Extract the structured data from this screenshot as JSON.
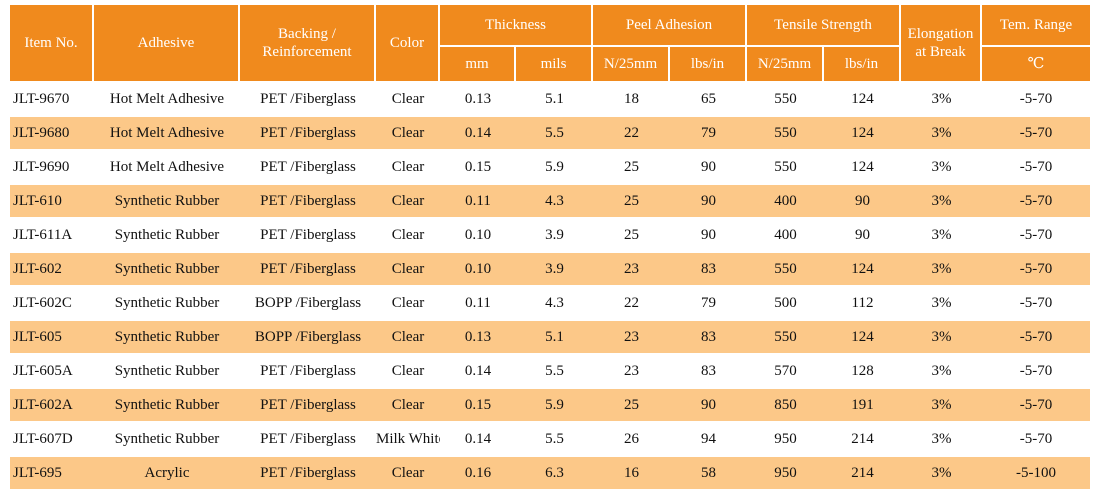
{
  "table": {
    "headers": {
      "item_no": "Item No.",
      "adhesive": "Adhesive",
      "backing_line1": "Backing /",
      "backing_line2": "Reinforcement",
      "color": "Color",
      "thickness": "Thickness",
      "thickness_mm": "mm",
      "thickness_mils": "mils",
      "peel_adhesion": "Peel Adhesion",
      "peel_n25mm": "N/25mm",
      "peel_lbsin": "lbs/in",
      "tensile_strength": "Tensile Strength",
      "tensile_n25mm": "N/25mm",
      "tensile_lbsin": "lbs/in",
      "elongation_line1": "Elongation",
      "elongation_line2": "at Break",
      "tem_range": "Tem. Range",
      "tem_unit": "℃"
    },
    "colors": {
      "header_bg": "#f08a1d",
      "header_text": "#ffffff",
      "stripe_bg": "#fcc888",
      "row_bg": "#ffffff"
    },
    "rows": [
      [
        "JLT-9670",
        "Hot Melt Adhesive",
        "PET /Fiberglass",
        "Clear",
        "0.13",
        "5.1",
        "18",
        "65",
        "550",
        "124",
        "3%",
        "-5-70"
      ],
      [
        "JLT-9680",
        "Hot Melt Adhesive",
        "PET /Fiberglass",
        "Clear",
        "0.14",
        "5.5",
        "22",
        "79",
        "550",
        "124",
        "3%",
        "-5-70"
      ],
      [
        "JLT-9690",
        "Hot Melt Adhesive",
        "PET /Fiberglass",
        "Clear",
        "0.15",
        "5.9",
        "25",
        "90",
        "550",
        "124",
        "3%",
        "-5-70"
      ],
      [
        "JLT-610",
        "Synthetic Rubber",
        "PET /Fiberglass",
        "Clear",
        "0.11",
        "4.3",
        "25",
        "90",
        "400",
        "90",
        "3%",
        "-5-70"
      ],
      [
        "JLT-611A",
        "Synthetic Rubber",
        "PET /Fiberglass",
        "Clear",
        "0.10",
        "3.9",
        "25",
        "90",
        "400",
        "90",
        "3%",
        "-5-70"
      ],
      [
        "JLT-602",
        "Synthetic Rubber",
        "PET /Fiberglass",
        "Clear",
        "0.10",
        "3.9",
        "23",
        "83",
        "550",
        "124",
        "3%",
        "-5-70"
      ],
      [
        "JLT-602C",
        "Synthetic Rubber",
        "BOPP /Fiberglass",
        "Clear",
        "0.11",
        "4.3",
        "22",
        "79",
        "500",
        "112",
        "3%",
        "-5-70"
      ],
      [
        "JLT-605",
        "Synthetic Rubber",
        "BOPP /Fiberglass",
        "Clear",
        "0.13",
        "5.1",
        "23",
        "83",
        "550",
        "124",
        "3%",
        "-5-70"
      ],
      [
        "JLT-605A",
        "Synthetic Rubber",
        "PET /Fiberglass",
        "Clear",
        "0.14",
        "5.5",
        "23",
        "83",
        "570",
        "128",
        "3%",
        "-5-70"
      ],
      [
        "JLT-602A",
        "Synthetic Rubber",
        "PET /Fiberglass",
        "Clear",
        "0.15",
        "5.9",
        "25",
        "90",
        "850",
        "191",
        "3%",
        "-5-70"
      ],
      [
        "JLT-607D",
        "Synthetic Rubber",
        "PET /Fiberglass",
        "Milk White",
        "0.14",
        "5.5",
        "26",
        "94",
        "950",
        "214",
        "3%",
        "-5-70"
      ],
      [
        "JLT-695",
        "Acrylic",
        "PET /Fiberglass",
        "Clear",
        "0.16",
        "6.3",
        "16",
        "58",
        "950",
        "214",
        "3%",
        "-5-100"
      ]
    ]
  }
}
